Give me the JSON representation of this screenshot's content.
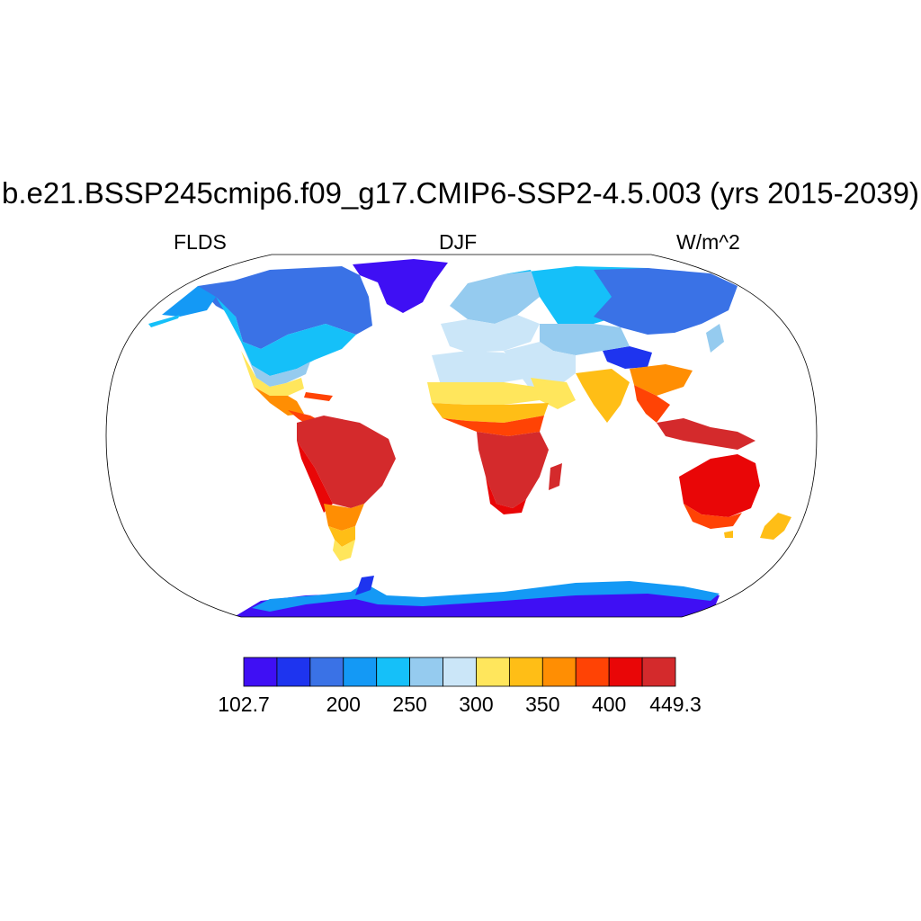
{
  "title": "b.e21.BSSP245cmip6.f09_g17.CMIP6-SSP2-4.5.003 (yrs 2015-2039)",
  "variable": "FLDS",
  "season": "DJF",
  "units": "W/m^2",
  "colorbar": {
    "min_label": "102.7",
    "max_label": "449.3",
    "tick_labels": [
      "200",
      "250",
      "300",
      "350",
      "400"
    ],
    "colors": [
      "#3f0ff4",
      "#1e34ef",
      "#3a72e6",
      "#1499f5",
      "#15c0f9",
      "#95cbef",
      "#cbe6f8",
      "#ffe65c",
      "#ffbe16",
      "#ff8e03",
      "#ff4305",
      "#e90607",
      "#d42a2c"
    ]
  },
  "map": {
    "projection": "robinson",
    "ocean_color": "#ffffff",
    "land_fill": "field"
  }
}
